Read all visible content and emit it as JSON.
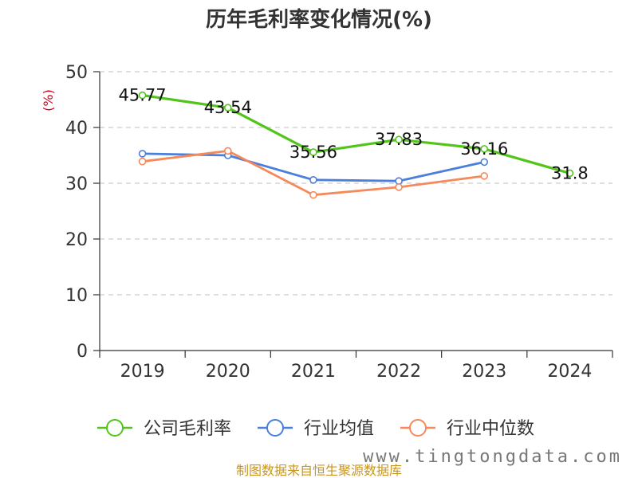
{
  "chart_data": {
    "type": "line",
    "title": "历年毛利率变化情况(%)",
    "ylabel": "(%)",
    "xlabel": "",
    "categories": [
      "2019",
      "2020",
      "2021",
      "2022",
      "2023",
      "2024"
    ],
    "ylim": [
      0,
      50
    ],
    "yticks": [
      0,
      10,
      20,
      30,
      40,
      50
    ],
    "grid": true,
    "legend_position": "bottom",
    "series": [
      {
        "name": "公司毛利率",
        "color": "#52c41a",
        "labels": true,
        "values": [
          45.77,
          43.54,
          35.56,
          37.83,
          36.16,
          31.8
        ],
        "value_labels": [
          "45.77",
          "43.54",
          "35.56",
          "37.83",
          "36.16",
          "31.8"
        ]
      },
      {
        "name": "行业均值",
        "color": "#4a7fdc",
        "labels": false,
        "values": [
          35.3,
          35.0,
          30.6,
          30.4,
          33.8,
          null
        ]
      },
      {
        "name": "行业中位数",
        "color": "#f5895b",
        "labels": false,
        "values": [
          33.9,
          35.8,
          27.9,
          29.3,
          31.3,
          null
        ]
      }
    ]
  },
  "footer": {
    "source": "制图数据来自恒生聚源数据库",
    "watermark": "www.tingtongdata.com"
  }
}
